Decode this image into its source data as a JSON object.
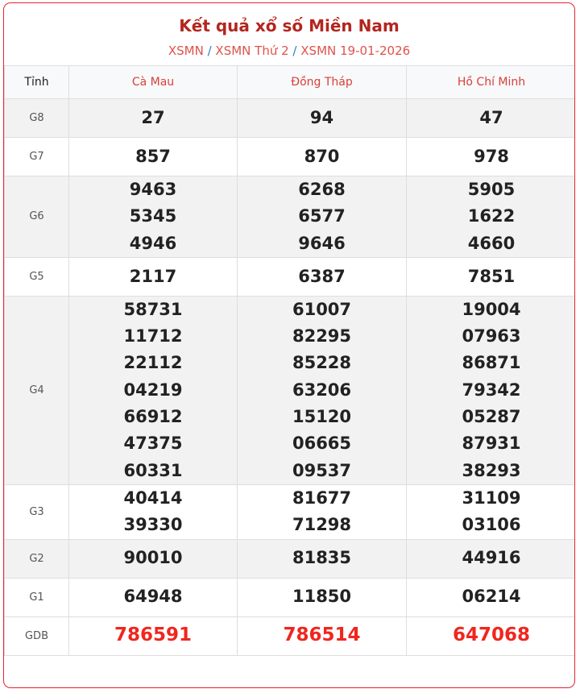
{
  "title": "Kết quả xổ số Miền Nam",
  "breadcrumb": [
    "XSMN",
    "XSMN Thứ 2",
    "XSMN 19-01-2026"
  ],
  "breadcrumb_sep": "/",
  "header": {
    "label": "Tỉnh",
    "provinces": [
      "Cà Mau",
      "Đồng Tháp",
      "Hồ Chí Minh"
    ]
  },
  "colors": {
    "accent": "#e5252a",
    "title": "#b3261e",
    "special": "#f0261e"
  },
  "rows": [
    {
      "label": "G8",
      "values": [
        [
          "27"
        ],
        [
          "94"
        ],
        [
          "47"
        ]
      ]
    },
    {
      "label": "G7",
      "values": [
        [
          "857"
        ],
        [
          "870"
        ],
        [
          "978"
        ]
      ]
    },
    {
      "label": "G6",
      "values": [
        [
          "9463",
          "5345",
          "4946"
        ],
        [
          "6268",
          "6577",
          "9646"
        ],
        [
          "5905",
          "1622",
          "4660"
        ]
      ]
    },
    {
      "label": "G5",
      "values": [
        [
          "2117"
        ],
        [
          "6387"
        ],
        [
          "7851"
        ]
      ]
    },
    {
      "label": "G4",
      "values": [
        [
          "58731",
          "11712",
          "22112",
          "04219",
          "66912",
          "47375",
          "60331"
        ],
        [
          "61007",
          "82295",
          "85228",
          "63206",
          "15120",
          "06665",
          "09537"
        ],
        [
          "19004",
          "07963",
          "86871",
          "79342",
          "05287",
          "87931",
          "38293"
        ]
      ]
    },
    {
      "label": "G3",
      "values": [
        [
          "40414",
          "39330"
        ],
        [
          "81677",
          "71298"
        ],
        [
          "31109",
          "03106"
        ]
      ]
    },
    {
      "label": "G2",
      "values": [
        [
          "90010"
        ],
        [
          "81835"
        ],
        [
          "44916"
        ]
      ]
    },
    {
      "label": "G1",
      "values": [
        [
          "64948"
        ],
        [
          "11850"
        ],
        [
          "06214"
        ]
      ]
    },
    {
      "label": "GDB",
      "values": [
        [
          "786591"
        ],
        [
          "786514"
        ],
        [
          "647068"
        ]
      ]
    }
  ]
}
